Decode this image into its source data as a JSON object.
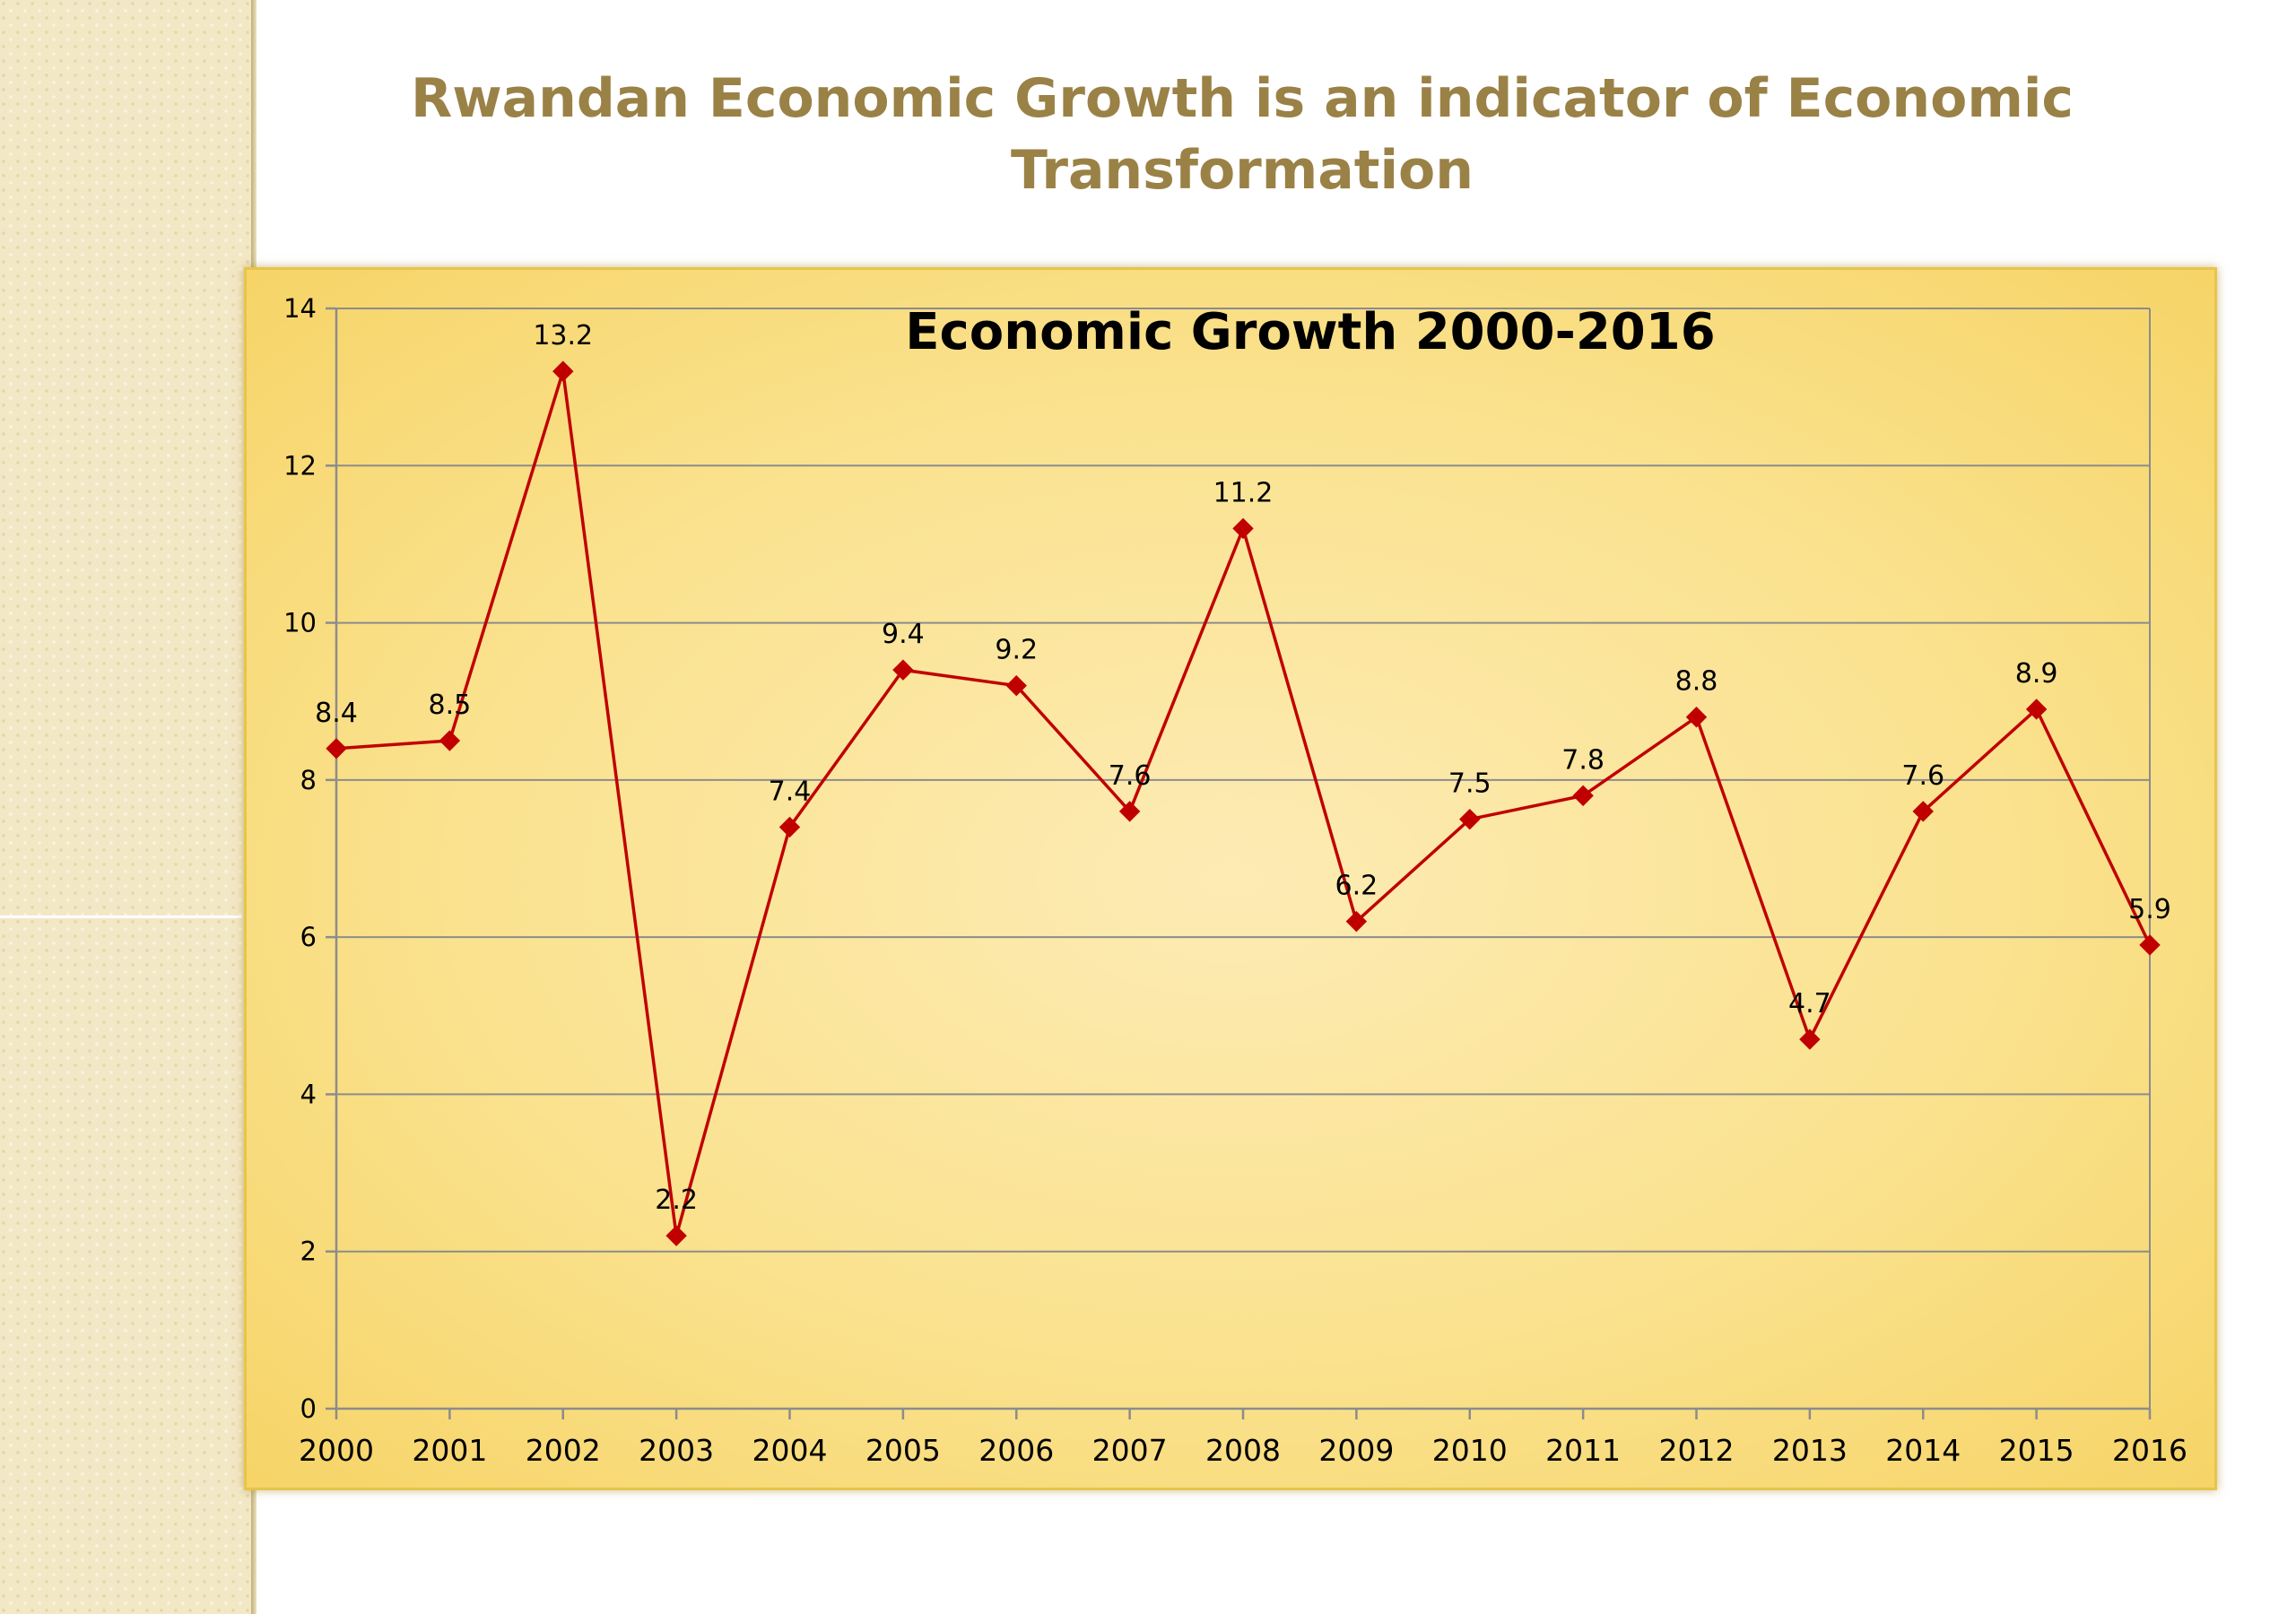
{
  "slide": {
    "title": "Rwandan Economic Growth is an indicator of Economic Transformation"
  },
  "colors": {
    "title_text": "#9a8146",
    "line": "#c00000",
    "marker": "#c00000",
    "chart_background": "#fae28f"
  },
  "chart_data": {
    "type": "line",
    "title": "Economic Growth 2000-2016",
    "xlabel": "",
    "ylabel": "",
    "categories": [
      "2000",
      "2001",
      "2002",
      "2003",
      "2004",
      "2005",
      "2006",
      "2007",
      "2008",
      "2009",
      "2010",
      "2011",
      "2012",
      "2013",
      "2014",
      "2015",
      "2016"
    ],
    "series": [
      {
        "values": [
          8.4,
          8.5,
          13.2,
          2.2,
          7.4,
          9.4,
          9.2,
          7.6,
          11.2,
          6.2,
          7.5,
          7.8,
          8.8,
          4.7,
          7.6,
          8.9,
          5.9
        ]
      }
    ],
    "ylim": [
      0,
      14
    ],
    "yticks": [
      0,
      2,
      4,
      6,
      8,
      10,
      12,
      14
    ],
    "grid": true,
    "legend": "none",
    "marker": "diamond"
  }
}
